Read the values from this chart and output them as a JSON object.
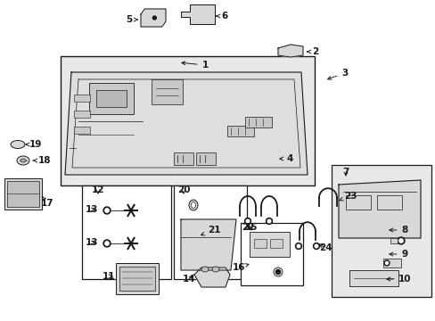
{
  "bg_color": "#ffffff",
  "fig_width": 4.89,
  "fig_height": 3.6,
  "dpi": 100,
  "dark": "#1a1a1a",
  "light_gray": "#e8e8e8",
  "mid_gray": "#c8c8c8",
  "box_fill": "#ffffff",
  "part_fill": "#d8d8d8"
}
